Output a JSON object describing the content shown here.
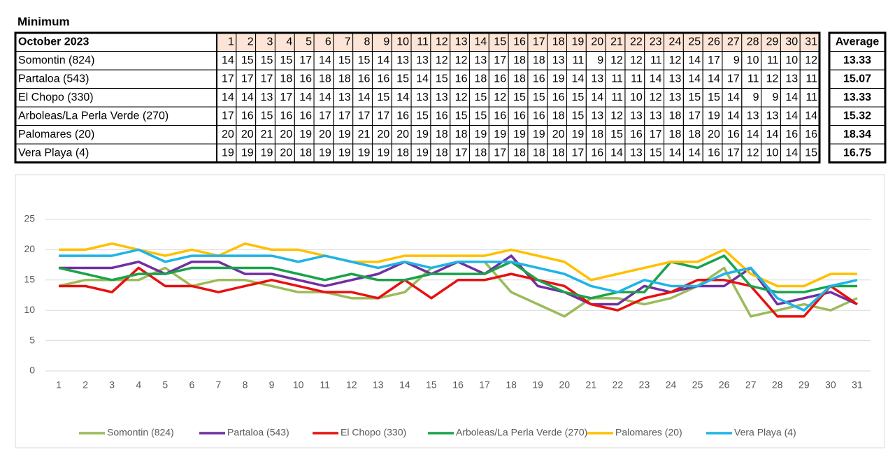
{
  "title": "Minimum",
  "table": {
    "header": "October 2023",
    "average_header": "Average",
    "averages": [
      13.33,
      15.07,
      13.33,
      15.32,
      18.34,
      16.75
    ]
  },
  "chart_data": {
    "type": "line",
    "x": [
      1,
      2,
      3,
      4,
      5,
      6,
      7,
      8,
      9,
      10,
      11,
      12,
      13,
      14,
      15,
      16,
      17,
      18,
      19,
      20,
      21,
      22,
      23,
      24,
      25,
      26,
      27,
      28,
      29,
      30,
      31
    ],
    "series": [
      {
        "name": "Somontin (824)",
        "color": "#9bbb59",
        "values": [
          14,
          15,
          15,
          15,
          17,
          14,
          15,
          15,
          14,
          13,
          13,
          12,
          12,
          13,
          17,
          18,
          18,
          13,
          11,
          9,
          12,
          12,
          11,
          12,
          14,
          17,
          9,
          10,
          11,
          10,
          12
        ]
      },
      {
        "name": "Partaloa (543)",
        "color": "#7030a0",
        "values": [
          17,
          17,
          17,
          18,
          16,
          18,
          18,
          16,
          16,
          15,
          14,
          15,
          16,
          18,
          16,
          18,
          16,
          19,
          14,
          13,
          11,
          11,
          14,
          13,
          14,
          14,
          17,
          11,
          12,
          13,
          11
        ]
      },
      {
        "name": "El Chopo (330)",
        "color": "#e81010",
        "values": [
          14,
          14,
          13,
          17,
          14,
          14,
          13,
          14,
          15,
          14,
          13,
          13,
          12,
          15,
          12,
          15,
          15,
          16,
          15,
          14,
          11,
          10,
          12,
          13,
          15,
          15,
          14,
          9,
          9,
          14,
          11
        ]
      },
      {
        "name": "Arboleas/La Perla Verde (270)",
        "color": "#1aa34a",
        "values": [
          17,
          16,
          15,
          16,
          16,
          17,
          17,
          17,
          17,
          16,
          15,
          16,
          15,
          15,
          16,
          16,
          16,
          18,
          15,
          13,
          12,
          13,
          13,
          18,
          17,
          19,
          14,
          13,
          13,
          14,
          14
        ]
      },
      {
        "name": "Palomares (20)",
        "color": "#ffc000",
        "values": [
          20,
          20,
          21,
          20,
          19,
          20,
          19,
          21,
          20,
          20,
          19,
          18,
          18,
          19,
          19,
          19,
          19,
          20,
          19,
          18,
          15,
          16,
          17,
          18,
          18,
          20,
          16,
          14,
          14,
          16,
          16
        ]
      },
      {
        "name": "Vera Playa (4)",
        "color": "#1fb4e6",
        "values": [
          19,
          19,
          19,
          20,
          18,
          19,
          19,
          19,
          19,
          18,
          19,
          18,
          17,
          18,
          17,
          18,
          18,
          18,
          17,
          16,
          14,
          13,
          15,
          14,
          14,
          16,
          17,
          12,
          10,
          14,
          15
        ]
      }
    ],
    "ylim": [
      0,
      25
    ],
    "yticks": [
      0,
      5,
      10,
      15,
      20,
      25
    ],
    "grid": true
  }
}
